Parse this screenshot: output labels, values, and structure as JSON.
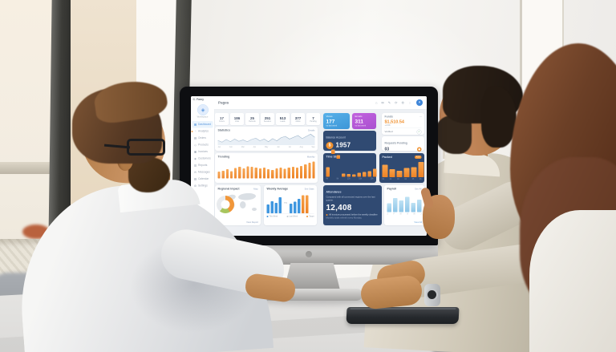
{
  "dashboard": {
    "brand": "C. Famy",
    "page_title": "Pages",
    "sidebar": {
      "logo_glyph": "◈",
      "workspace_label": "Workspace",
      "items": [
        {
          "icon": "▦",
          "label": "Dashboard"
        },
        {
          "icon": "◔",
          "label": "Analytics"
        },
        {
          "icon": "▤",
          "label": "Orders"
        },
        {
          "icon": "◇",
          "label": "Products"
        },
        {
          "icon": "▣",
          "label": "Invoices"
        },
        {
          "icon": "◈",
          "label": "Customers"
        },
        {
          "icon": "▥",
          "label": "Reports"
        },
        {
          "icon": "✉",
          "label": "Messages"
        },
        {
          "icon": "▧",
          "label": "Calendar"
        },
        {
          "icon": "⚙",
          "label": "Settings"
        }
      ]
    },
    "topbar": {
      "icons": [
        {
          "glyph": "⌂",
          "name": "home-icon"
        },
        {
          "glyph": "✉",
          "name": "mail-icon"
        },
        {
          "glyph": "✎",
          "name": "edit-icon"
        },
        {
          "glyph": "⟳",
          "name": "refresh-icon"
        },
        {
          "glyph": "⚙",
          "name": "settings-icon"
        },
        {
          "glyph": "⋮",
          "name": "more-icon"
        }
      ],
      "avatar_initial": "A"
    },
    "stats": [
      {
        "value": "17",
        "label": "Orders"
      },
      {
        "value": "186",
        "label": "Visits"
      },
      {
        "value": "25",
        "label": "Refunds"
      },
      {
        "value": "251",
        "label": "Sessions"
      },
      {
        "value": "513",
        "label": "Leads"
      },
      {
        "value": "377",
        "label": "Clicks"
      },
      {
        "value": "7",
        "label": "Pending"
      }
    ],
    "cards": {
      "views": {
        "label": "Views",
        "value": "177",
        "sub": "vs last week"
      },
      "emails": {
        "label": "Emails",
        "value": "311",
        "sub": "vs last week"
      },
      "funds": {
        "title": "Funds",
        "menu": "⋯",
        "value": "$1,510.54",
        "delta": "+2.4%",
        "verified": "Verified",
        "check": "✓"
      },
      "requests": {
        "title": "Requests Pending",
        "value": "03"
      },
      "bitcoin": {
        "title": "Balance Account",
        "coin": "$",
        "value": "1957"
      },
      "statistics": {
        "title": "Statistics",
        "link": "Details",
        "points": [
          18,
          10,
          22,
          12,
          24,
          14,
          20,
          12,
          22,
          28,
          16,
          24,
          12,
          26,
          16,
          30,
          36,
          24,
          32,
          40,
          26,
          36,
          46,
          32
        ],
        "x_labels": [
          "Jan",
          "Feb",
          "Mar",
          "Apr",
          "May",
          "Jun",
          "Jul",
          "Aug",
          "Sep"
        ]
      },
      "trending": {
        "title": "Trending",
        "link": "Monthly",
        "bars": [
          36,
          42,
          50,
          40,
          56,
          62,
          54,
          66,
          62,
          58,
          54,
          58,
          50,
          46,
          54,
          58,
          52,
          58,
          62,
          58,
          68,
          76,
          84,
          92
        ]
      },
      "timestats": {
        "title": "Time Stats",
        "bars": [
          {
            "v": 58,
            "b": 0
          },
          {
            "v": 28,
            "b": 48
          },
          {
            "v": 22,
            "b": 38
          },
          {
            "v": 20,
            "b": 0
          },
          {
            "v": 16,
            "b": 0
          },
          {
            "v": 14,
            "b": 0
          },
          {
            "v": 24,
            "b": 0
          },
          {
            "v": 28,
            "b": 0
          },
          {
            "v": 34,
            "b": 0
          },
          {
            "v": 48,
            "b": 0
          }
        ],
        "x_labels": [
          "4h",
          "8h",
          "12h",
          "16h",
          "20h"
        ]
      },
      "packed": {
        "title": "Packed",
        "badge": "420",
        "bars": [
          74,
          48,
          38,
          54,
          60,
          90
        ],
        "x_labels": [
          "01",
          "02",
          "03",
          "04",
          "05",
          "06"
        ]
      },
      "regional": {
        "title": "Regional Impact",
        "link": "Map",
        "footer": "View Report",
        "donut_segments": [
          {
            "color": "#f0912f",
            "deg": 150
          },
          {
            "color": "#a3c255",
            "deg": 70
          },
          {
            "color": "#e7eaed",
            "deg": 140
          }
        ]
      },
      "weekly": {
        "title": "Weekly Average",
        "link": "See Stats",
        "mid": "avg",
        "group1": [
          42,
          58,
          50,
          76
        ],
        "group2": [
          46,
          56,
          70
        ],
        "group3": [
          86,
          86
        ],
        "legends": [
          "This Week",
          "Last Week",
          "Target"
        ]
      },
      "attendance": {
        "title": "Attendance",
        "desc": "Compared with all connected regions over the last quarter",
        "value": "12,408",
        "note": "All invoices processed before the weekly deadline",
        "note2": "Monthly totals refresh every Monday"
      },
      "payroll": {
        "title": "Payroll",
        "link": "See All",
        "bars": [
          44,
          70,
          58,
          76,
          46,
          62
        ],
        "x_labels": [
          "J",
          "F",
          "M",
          "A",
          "M",
          "J"
        ],
        "footer": "View All"
      }
    },
    "colors": {
      "orange": "#f0912f",
      "blue": "#3f97e0",
      "purple": "#b15cd6",
      "navy": "#304a72",
      "pale_blue": "#a9d5ee"
    }
  }
}
